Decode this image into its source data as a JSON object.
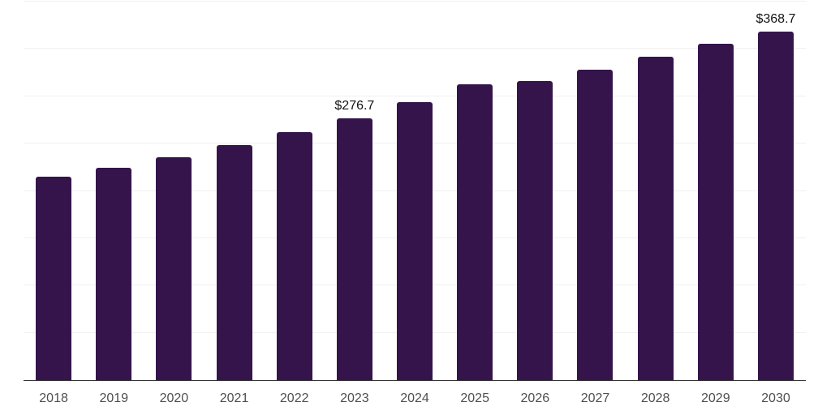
{
  "chart_data": {
    "type": "bar",
    "title": "",
    "xlabel": "",
    "ylabel": "",
    "categories": [
      "2018",
      "2019",
      "2020",
      "2021",
      "2022",
      "2023",
      "2024",
      "2025",
      "2026",
      "2027",
      "2028",
      "2029",
      "2030"
    ],
    "values": [
      215.0,
      224.2,
      235.4,
      248.0,
      261.8,
      276.7,
      294.0,
      312.5,
      316.4,
      327.7,
      341.7,
      355.9,
      368.7
    ],
    "annotations": [
      {
        "category": "2023",
        "label": "$276.7"
      },
      {
        "category": "2030",
        "label": "$368.7"
      }
    ],
    "ylim": [
      0,
      400
    ],
    "gridline_step": 50,
    "grid": true,
    "legend": false,
    "y_axis_labels_visible": false,
    "colors": {
      "background": "#ffffff",
      "bar": "#35144b",
      "gridline": "#f0f0f0",
      "axis_line": "#333333",
      "tick_label": "#4f4f4f",
      "annotation_label": "#141414"
    }
  }
}
